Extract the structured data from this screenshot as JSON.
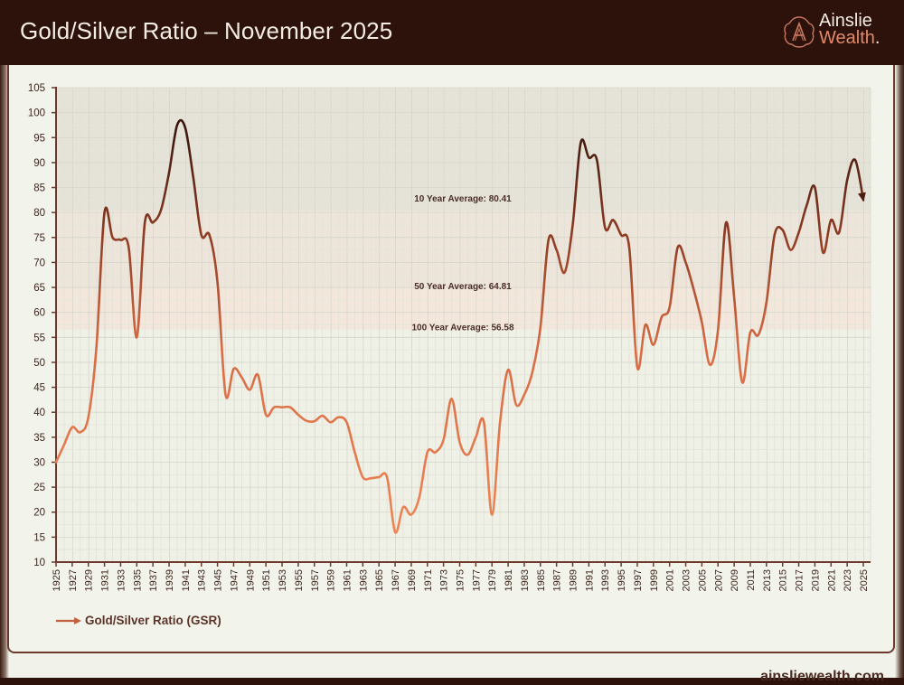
{
  "header": {
    "title": "Gold/Silver Ratio – November 2025",
    "logo": {
      "line1": "Ainslie",
      "line2": "Wealth",
      "dot": "."
    }
  },
  "footer": {
    "url": "ainsliewealth.com"
  },
  "legend": {
    "label": "Gold/Silver Ratio (GSR)",
    "icon": "arrow-right-icon"
  },
  "colors": {
    "header_bg": "#2c120b",
    "line_start": "#e07a4e",
    "line_end": "#3a160d",
    "card_bg": "#f2f3ea",
    "axis": "#6b3a2c"
  },
  "chart_data": {
    "type": "line",
    "title": "Gold/Silver Ratio – November 2025",
    "xlabel": "",
    "ylabel": "",
    "ylim": [
      10,
      105
    ],
    "xlim": [
      1925,
      2025
    ],
    "grid": true,
    "legend_position": "bottom-left",
    "y_ticks": [
      10,
      15,
      20,
      25,
      30,
      35,
      40,
      45,
      50,
      55,
      60,
      65,
      70,
      75,
      80,
      85,
      90,
      95,
      100,
      105
    ],
    "x_ticks": [
      1925,
      1927,
      1929,
      1931,
      1933,
      1935,
      1937,
      1939,
      1941,
      1943,
      1945,
      1947,
      1949,
      1951,
      1953,
      1955,
      1957,
      1959,
      1961,
      1963,
      1965,
      1967,
      1969,
      1971,
      1973,
      1975,
      1977,
      1979,
      1981,
      1983,
      1985,
      1987,
      1989,
      1991,
      1993,
      1995,
      1997,
      1999,
      2001,
      2003,
      2005,
      2007,
      2009,
      2011,
      2013,
      2015,
      2017,
      2019,
      2021,
      2023,
      2025
    ],
    "series": [
      {
        "name": "Gold/Silver Ratio (GSR)",
        "x": [
          1925,
          1926,
          1927,
          1928,
          1929,
          1930,
          1931,
          1932,
          1933,
          1934,
          1935,
          1936,
          1937,
          1938,
          1939,
          1940,
          1941,
          1942,
          1943,
          1944,
          1945,
          1946,
          1947,
          1948,
          1949,
          1950,
          1951,
          1952,
          1953,
          1954,
          1955,
          1956,
          1957,
          1958,
          1959,
          1960,
          1961,
          1962,
          1963,
          1964,
          1965,
          1966,
          1967,
          1968,
          1969,
          1970,
          1971,
          1972,
          1973,
          1974,
          1975,
          1976,
          1977,
          1978,
          1979,
          1980,
          1981,
          1982,
          1983,
          1984,
          1985,
          1986,
          1987,
          1988,
          1989,
          1990,
          1991,
          1992,
          1993,
          1994,
          1995,
          1996,
          1997,
          1998,
          1999,
          2000,
          2001,
          2002,
          2003,
          2004,
          2005,
          2006,
          2007,
          2008,
          2009,
          2010,
          2011,
          2012,
          2013,
          2014,
          2015,
          2016,
          2017,
          2018,
          2019,
          2020,
          2021,
          2022,
          2023,
          2024,
          2025
        ],
        "values": [
          30,
          33.5,
          37,
          36,
          39,
          53,
          80,
          75,
          74.5,
          73,
          55,
          78,
          78,
          80.5,
          88,
          97.5,
          97,
          87,
          75.5,
          75.5,
          66,
          43.5,
          48.7,
          47,
          44.5,
          47.5,
          39.5,
          41,
          41,
          41,
          39.5,
          38.3,
          38.2,
          39.3,
          38,
          39,
          38,
          32,
          27,
          26.8,
          27,
          27,
          16,
          21,
          19.5,
          23,
          32,
          32,
          34.5,
          42.7,
          34,
          31.5,
          35,
          38,
          19.5,
          38,
          48.5,
          41.5,
          43.5,
          48,
          57,
          74.5,
          72.5,
          68,
          77.5,
          94,
          91,
          90.5,
          77,
          78.5,
          75.5,
          73,
          49,
          57.5,
          53.5,
          59,
          61,
          73,
          70,
          64.5,
          58,
          49.5,
          56.5,
          78,
          63,
          46,
          56,
          55.5,
          62,
          75.5,
          76.5,
          72.5,
          76,
          81.5,
          85,
          72,
          78.5,
          76,
          86.5,
          90.5,
          82.5
        ]
      }
    ],
    "annotations": [
      {
        "text": "10 Year Average: 80.41",
        "value": 80.41,
        "label": "10 Year Average",
        "band_from": 80.41,
        "band_to": 105
      },
      {
        "text": "50 Year Average: 64.81",
        "value": 64.81,
        "label": "50 Year Average",
        "band_from": 64.81,
        "band_to": 80.41
      },
      {
        "text": "100 Year Average: 56.58",
        "value": 56.58,
        "label": "100 Year Average",
        "band_from": 56.58,
        "band_to": 64.81
      }
    ]
  }
}
